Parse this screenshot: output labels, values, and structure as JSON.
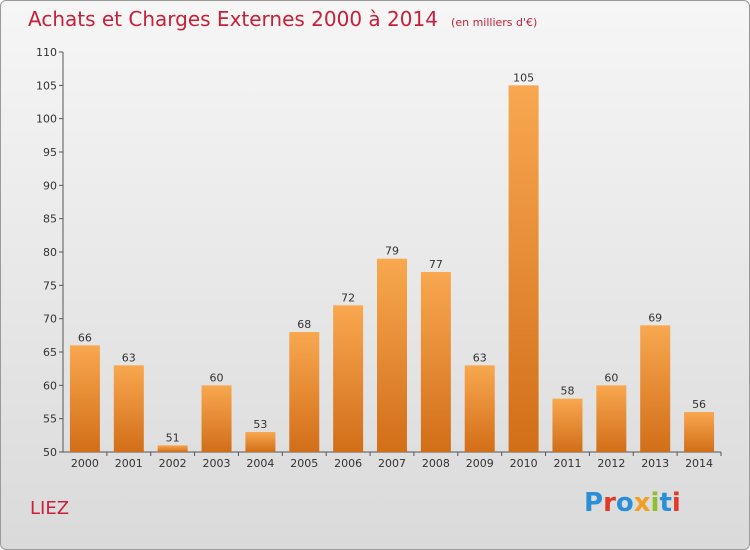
{
  "header": {
    "title": "Achats et Charges Externes 2000 à 2014",
    "subtitle": "(en milliers d'€)"
  },
  "footer": {
    "town": "LIEZ",
    "logo": "Proxiti"
  },
  "colors": {
    "title": "#c8203a",
    "bar_light": "#f8a850",
    "bar_dark": "#d26e18",
    "logo_letters": [
      "#2a8fd6",
      "#e03a2a",
      "#2a8fd6",
      "#f0a020",
      "#8fbf2a",
      "#2a8fd6",
      "#e03a2a"
    ]
  },
  "chart_data": {
    "type": "bar",
    "categories": [
      "2000",
      "2001",
      "2002",
      "2003",
      "2004",
      "2005",
      "2006",
      "2007",
      "2008",
      "2009",
      "2010",
      "2011",
      "2012",
      "2013",
      "2014"
    ],
    "values": [
      66,
      63,
      51,
      60,
      53,
      68,
      72,
      79,
      77,
      63,
      105,
      58,
      60,
      69,
      56
    ],
    "title": "Achats et Charges Externes 2000 à 2014",
    "subtitle": "(en milliers d'€)",
    "xlabel": "",
    "ylabel": "",
    "ylim": [
      50,
      110
    ],
    "yticks": [
      50,
      55,
      60,
      65,
      70,
      75,
      80,
      85,
      90,
      95,
      100,
      105,
      110
    ],
    "grid": false,
    "data_labels": true
  }
}
